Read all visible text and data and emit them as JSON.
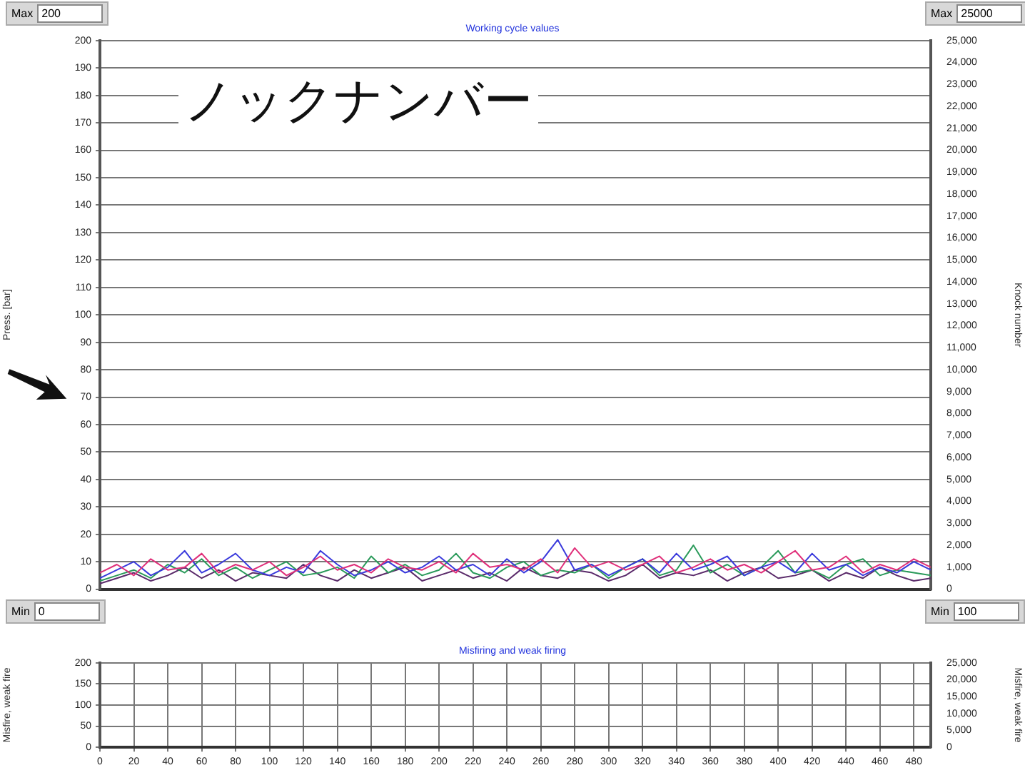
{
  "chart_data": [
    {
      "type": "line",
      "title": "Working cycle values",
      "ylabel": "Press. [bar]",
      "y2label": "Knock number",
      "annotations": [
        "ノックナンバー",
        "Max",
        "200",
        "Max",
        "25000",
        "Min",
        "0",
        "Min",
        "100"
      ],
      "x": [
        0,
        10,
        20,
        30,
        40,
        50,
        60,
        70,
        80,
        90,
        100,
        110,
        120,
        130,
        140,
        150,
        160,
        170,
        180,
        190,
        200,
        210,
        220,
        230,
        240,
        250,
        260,
        270,
        280,
        290,
        300,
        310,
        320,
        330,
        340,
        350,
        360,
        370,
        380,
        390,
        400,
        410,
        420,
        430,
        440,
        450,
        460,
        470,
        480,
        490
      ],
      "series": [
        {
          "color": "#e0307a",
          "values": [
            6,
            9,
            5,
            11,
            7,
            8,
            13,
            6,
            9,
            7,
            10,
            5,
            8,
            12,
            7,
            9,
            6,
            11,
            8,
            7,
            10,
            6,
            13,
            8,
            9,
            7,
            11,
            6,
            15,
            8,
            10,
            7,
            9,
            12,
            6,
            8,
            11,
            7,
            9,
            6,
            10,
            14,
            7,
            8,
            12,
            6,
            9,
            7,
            11,
            8
          ]
        },
        {
          "color": "#3a3adc",
          "values": [
            4,
            7,
            10,
            5,
            8,
            14,
            6,
            9,
            13,
            7,
            5,
            8,
            6,
            14,
            9,
            5,
            7,
            10,
            6,
            8,
            12,
            7,
            9,
            5,
            11,
            6,
            10,
            18,
            7,
            9,
            5,
            8,
            11,
            6,
            13,
            7,
            9,
            12,
            5,
            8,
            10,
            6,
            13,
            7,
            9,
            5,
            8,
            6,
            10,
            7
          ]
        },
        {
          "color": "#2a9a5a",
          "values": [
            3,
            5,
            7,
            4,
            9,
            6,
            11,
            5,
            8,
            4,
            7,
            10,
            5,
            6,
            8,
            4,
            12,
            6,
            9,
            5,
            7,
            13,
            6,
            4,
            8,
            10,
            5,
            7,
            6,
            9,
            4,
            8,
            11,
            5,
            7,
            16,
            6,
            9,
            5,
            8,
            14,
            6,
            7,
            4,
            9,
            11,
            5,
            7,
            6,
            5
          ]
        },
        {
          "color": "#5a2a6a",
          "values": [
            2,
            4,
            6,
            3,
            5,
            8,
            4,
            7,
            3,
            6,
            5,
            4,
            9,
            5,
            3,
            7,
            4,
            6,
            8,
            3,
            5,
            7,
            4,
            6,
            3,
            8,
            5,
            4,
            7,
            6,
            3,
            5,
            9,
            4,
            6,
            5,
            7,
            3,
            6,
            8,
            4,
            5,
            7,
            3,
            6,
            4,
            8,
            5,
            3,
            4
          ]
        }
      ],
      "xlim": [
        0,
        490
      ],
      "ylim": [
        0,
        200
      ],
      "yticks": [
        0,
        10,
        20,
        30,
        40,
        50,
        60,
        70,
        80,
        90,
        100,
        110,
        120,
        130,
        140,
        150,
        160,
        170,
        180,
        190,
        200
      ],
      "y2lim": [
        0,
        25000
      ],
      "y2ticks": [
        0,
        {
          "value": 1000,
          "label": "1,000"
        },
        {
          "value": 2000,
          "label": "2,000"
        },
        {
          "value": 3000,
          "label": "3,000"
        },
        {
          "value": 4000,
          "label": "4,000"
        },
        {
          "value": 5000,
          "label": "5,000"
        },
        {
          "value": 6000,
          "label": "6,000"
        },
        {
          "value": 7000,
          "label": "7,000"
        },
        {
          "value": 8000,
          "label": "8,000"
        },
        {
          "value": 9000,
          "label": "9,000"
        },
        {
          "value": 10000,
          "label": "10,000"
        },
        {
          "value": 11000,
          "label": "11,000"
        },
        {
          "value": 12000,
          "label": "12,000"
        },
        {
          "value": 13000,
          "label": "13,000"
        },
        {
          "value": 14000,
          "label": "14,000"
        },
        {
          "value": 15000,
          "label": "15,000"
        },
        {
          "value": 16000,
          "label": "16,000"
        },
        {
          "value": 17000,
          "label": "17,000"
        },
        {
          "value": 18000,
          "label": "18,000"
        },
        {
          "value": 19000,
          "label": "19,000"
        },
        {
          "value": 20000,
          "label": "20,000"
        },
        {
          "value": 21000,
          "label": "21,000"
        },
        {
          "value": 22000,
          "label": "22,000"
        },
        {
          "value": 23000,
          "label": "23,000"
        },
        {
          "value": 24000,
          "label": "24,000"
        },
        {
          "value": 25000,
          "label": "25,000"
        }
      ],
      "tick_labels": "y",
      "grid": "y"
    },
    {
      "type": "line",
      "title": "Misfiring and weak firing",
      "ylabel": "Misfire, weak fire",
      "y2label": "Misfire, weak fire",
      "x": [
        0,
        490
      ],
      "series": [
        {
          "color": "#333333",
          "values": [
            0,
            0
          ]
        }
      ],
      "xlim": [
        0,
        490
      ],
      "ylim": [
        0,
        200
      ],
      "xticks": [
        0,
        20,
        40,
        60,
        80,
        100,
        120,
        140,
        160,
        180,
        200,
        220,
        240,
        260,
        280,
        300,
        320,
        340,
        360,
        380,
        400,
        420,
        440,
        460,
        480
      ],
      "yticks": [
        0,
        50,
        100,
        150,
        200
      ],
      "y2lim": [
        0,
        25000
      ],
      "y2ticks": [
        0,
        {
          "value": 5000,
          "label": "5,000"
        },
        {
          "value": 10000,
          "label": "10,000"
        },
        {
          "value": 15000,
          "label": "15,000"
        },
        {
          "value": 20000,
          "label": "20,000"
        },
        {
          "value": 25000,
          "label": "25,000"
        }
      ],
      "grid": true
    }
  ]
}
